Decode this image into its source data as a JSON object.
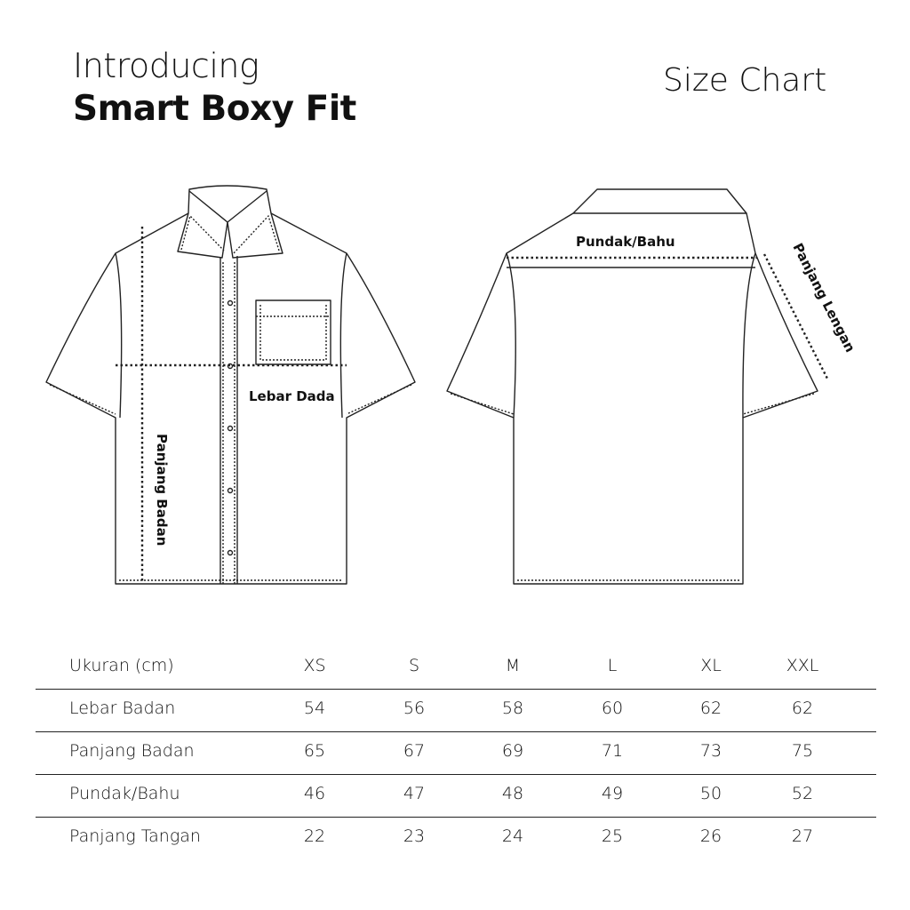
{
  "header": {
    "intro": "Introducing",
    "product": "Smart Boxy Fit",
    "chart_title": "Size Chart"
  },
  "illustration": {
    "front_labels": {
      "chest": "Lebar Dada",
      "body_length": "Panjang Badan"
    },
    "back_labels": {
      "shoulder": "Pundak/Bahu",
      "sleeve_length": "Panjang Lengan"
    }
  },
  "size_table": {
    "columns": [
      "Ukuran (cm)",
      "XS",
      "S",
      "M",
      "L",
      "XL",
      "XXL"
    ],
    "rows": [
      {
        "label": "Lebar Badan",
        "values": [
          "54",
          "56",
          "58",
          "60",
          "62",
          "62"
        ]
      },
      {
        "label": "Panjang Badan",
        "values": [
          "65",
          "67",
          "69",
          "71",
          "73",
          "75"
        ]
      },
      {
        "label": "Pundak/Bahu",
        "values": [
          "46",
          "47",
          "48",
          "49",
          "50",
          "52"
        ]
      },
      {
        "label": "Panjang Tangan",
        "values": [
          "22",
          "23",
          "24",
          "25",
          "26",
          "27"
        ]
      }
    ]
  }
}
